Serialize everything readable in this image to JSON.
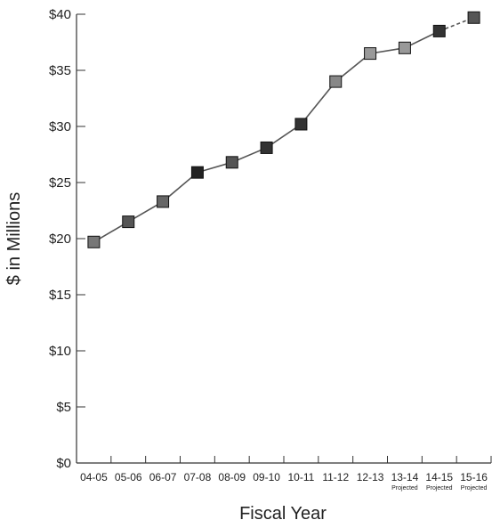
{
  "chart_data": {
    "type": "line",
    "title": "",
    "xlabel": "Fiscal Year",
    "ylabel": "$ in Millions",
    "categories": [
      "04-05",
      "05-06",
      "06-07",
      "07-08",
      "08-09",
      "09-10",
      "10-11",
      "11-12",
      "12-13",
      "13-14",
      "14-15",
      "15-16"
    ],
    "values": [
      19.7,
      21.5,
      23.3,
      25.9,
      26.8,
      28.1,
      30.2,
      34.0,
      36.5,
      37.0,
      38.5,
      39.7
    ],
    "projected_labels": [
      "Projected",
      "Projected",
      "Projected"
    ],
    "projected_categories": [
      "13-14",
      "14-15",
      "15-16"
    ],
    "ylim": [
      0,
      40
    ],
    "yticks": [
      0,
      5,
      10,
      15,
      20,
      25,
      30,
      35,
      40
    ],
    "ytick_labels": [
      "$0",
      "$5",
      "$10",
      "$15",
      "$20",
      "$25",
      "$30",
      "$35",
      "$40"
    ],
    "grid": false,
    "line_color": "#555555",
    "marker_colors": [
      "#777777",
      "#555555",
      "#666666",
      "#222222",
      "#555555",
      "#333333",
      "#333333",
      "#888888",
      "#999999",
      "#999999",
      "#333333",
      "#555555"
    ]
  }
}
